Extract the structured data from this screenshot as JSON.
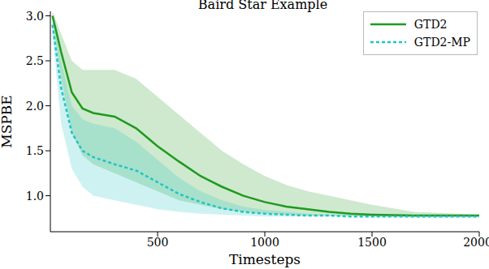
{
  "chart_data": {
    "type": "line",
    "title": "Baird Star Example",
    "x_label": "Timesteps",
    "y_label": "MSPBE",
    "x": [
      10,
      50,
      100,
      150,
      200,
      300,
      400,
      500,
      600,
      700,
      800,
      900,
      1000,
      1100,
      1200,
      1300,
      1400,
      1500,
      1700,
      2000
    ],
    "series": [
      {
        "name": "GTD2",
        "color": "#1e9a1e",
        "line_style": "solid",
        "values": [
          3.0,
          2.6,
          2.15,
          1.97,
          1.92,
          1.88,
          1.75,
          1.55,
          1.38,
          1.22,
          1.1,
          1.0,
          0.93,
          0.88,
          0.85,
          0.82,
          0.8,
          0.79,
          0.78,
          0.78
        ],
        "lower": [
          2.95,
          2.3,
          1.7,
          1.45,
          1.35,
          1.25,
          1.15,
          1.05,
          0.95,
          0.9,
          0.85,
          0.82,
          0.8,
          0.79,
          0.78,
          0.78,
          0.78,
          0.77,
          0.77,
          0.77
        ],
        "upper": [
          3.05,
          2.8,
          2.5,
          2.4,
          2.4,
          2.4,
          2.3,
          2.1,
          1.9,
          1.7,
          1.5,
          1.35,
          1.22,
          1.12,
          1.05,
          1.0,
          0.95,
          0.9,
          0.82,
          0.79
        ]
      },
      {
        "name": "GTD2-MP",
        "color": "#22c4c4",
        "line_style": "dashed",
        "values": [
          2.9,
          2.2,
          1.7,
          1.5,
          1.43,
          1.35,
          1.28,
          1.15,
          1.02,
          0.93,
          0.86,
          0.82,
          0.8,
          0.79,
          0.78,
          0.78,
          0.77,
          0.77,
          0.77,
          0.77
        ],
        "lower": [
          2.8,
          1.8,
          1.3,
          1.1,
          1.0,
          0.95,
          0.9,
          0.85,
          0.82,
          0.8,
          0.79,
          0.78,
          0.77,
          0.77,
          0.77,
          0.77,
          0.77,
          0.77,
          0.76,
          0.76
        ],
        "upper": [
          3.0,
          2.5,
          2.0,
          1.85,
          1.8,
          1.75,
          1.6,
          1.4,
          1.2,
          1.05,
          0.95,
          0.88,
          0.84,
          0.82,
          0.8,
          0.79,
          0.79,
          0.79,
          0.78,
          0.78
        ]
      }
    ],
    "xlim": [
      0,
      2000
    ],
    "xticks": [
      500,
      1000,
      1500,
      2000
    ],
    "ylim": [
      0.6,
      3.05
    ],
    "yticks": [
      {
        "value": 1,
        "label": "1.0"
      },
      {
        "value": 1.5,
        "label": "1.5"
      },
      {
        "value": 2,
        "label": "2.0"
      },
      {
        "value": 2.5,
        "label": "2.5"
      },
      {
        "value": 3,
        "label": "3.0"
      }
    ],
    "grid": false,
    "legend": "upper right"
  }
}
